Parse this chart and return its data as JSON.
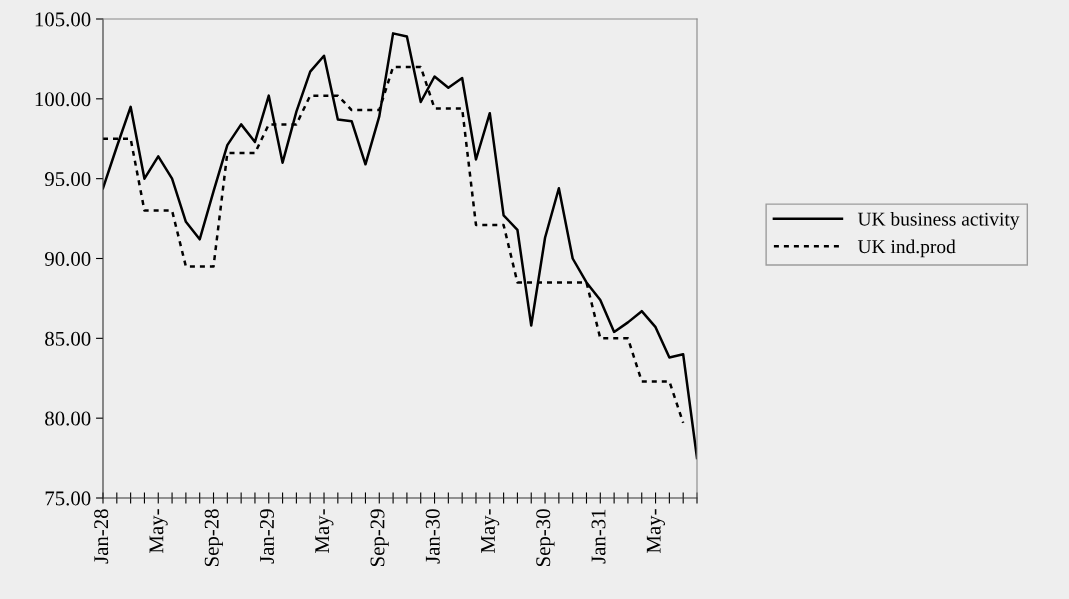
{
  "chart_data": {
    "type": "line",
    "categories": [
      "Jan-28",
      null,
      null,
      null,
      "May-",
      null,
      null,
      null,
      "Sep-28",
      null,
      null,
      null,
      "Jan-29",
      null,
      null,
      null,
      "May-",
      null,
      null,
      null,
      "Sep-29",
      null,
      null,
      null,
      "Jan-30",
      null,
      null,
      null,
      "May-",
      null,
      null,
      null,
      "Sep-30",
      null,
      null,
      null,
      "Jan-31",
      null,
      null,
      null,
      "May-",
      null,
      null,
      null
    ],
    "series": [
      {
        "name": "UK business activity",
        "color": "#000000",
        "line_style": "solid",
        "values": [
          94.4,
          97.0,
          99.5,
          95.0,
          96.4,
          95.0,
          92.3,
          91.2,
          94.2,
          97.1,
          98.4,
          97.3,
          100.2,
          96.0,
          99.2,
          101.7,
          102.7,
          98.7,
          98.6,
          95.9,
          98.9,
          104.1,
          103.9,
          99.8,
          101.4,
          100.7,
          101.3,
          96.2,
          99.1,
          92.7,
          91.8,
          85.8,
          91.3,
          94.4,
          90.0,
          88.5,
          87.4,
          85.4,
          86.0,
          86.7,
          85.7,
          83.8,
          84.0,
          77.5
        ]
      },
      {
        "name": "UK ind.prod",
        "color": "#000000",
        "line_style": "dotted",
        "values": [
          97.5,
          97.5,
          97.5,
          93.0,
          93.0,
          93.0,
          89.5,
          89.5,
          89.5,
          96.6,
          96.6,
          96.6,
          98.4,
          98.4,
          98.4,
          100.2,
          100.2,
          100.2,
          99.3,
          99.3,
          99.3,
          102.0,
          102.0,
          102.0,
          99.4,
          99.4,
          99.4,
          92.1,
          92.1,
          92.1,
          88.5,
          88.5,
          88.5,
          88.5,
          88.5,
          88.5,
          85.0,
          85.0,
          85.0,
          82.3,
          82.3,
          82.3,
          79.7,
          null
        ]
      }
    ],
    "ylim": [
      75,
      105
    ],
    "yticks": [
      {
        "value": 75,
        "label": "75.00"
      },
      {
        "value": 80,
        "label": "80.00"
      },
      {
        "value": 85,
        "label": "85.00"
      },
      {
        "value": 90,
        "label": "90.00"
      },
      {
        "value": 95,
        "label": "95.00"
      },
      {
        "value": 100,
        "label": "100.00"
      },
      {
        "value": 105,
        "label": "105.00"
      }
    ],
    "legend": "right",
    "grid": false,
    "marker": "none"
  }
}
